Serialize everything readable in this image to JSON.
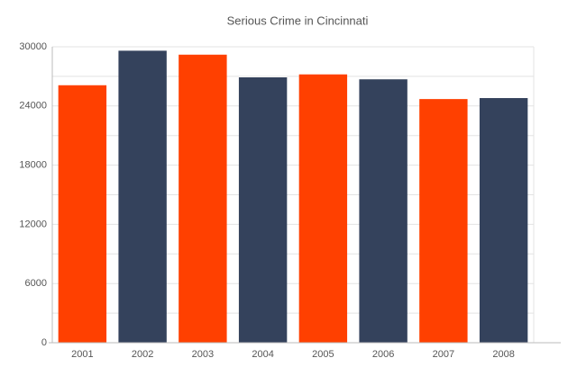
{
  "chart_data": {
    "type": "bar",
    "title": "Serious Crime in Cincinnati",
    "categories": [
      "2001",
      "2002",
      "2003",
      "2004",
      "2005",
      "2006",
      "2007",
      "2008"
    ],
    "values": [
      26100,
      29600,
      29200,
      26900,
      27200,
      26700,
      24700,
      24800
    ],
    "colors": [
      "#ff4000",
      "#34425c",
      "#ff4000",
      "#34425c",
      "#ff4000",
      "#34425c",
      "#ff4000",
      "#34425c"
    ],
    "ylim": [
      0,
      30000
    ],
    "yticks": [
      0,
      6000,
      12000,
      18000,
      24000,
      30000
    ],
    "minor_yticks": [
      3000,
      9000,
      15000,
      21000,
      27000
    ],
    "grid": true
  }
}
